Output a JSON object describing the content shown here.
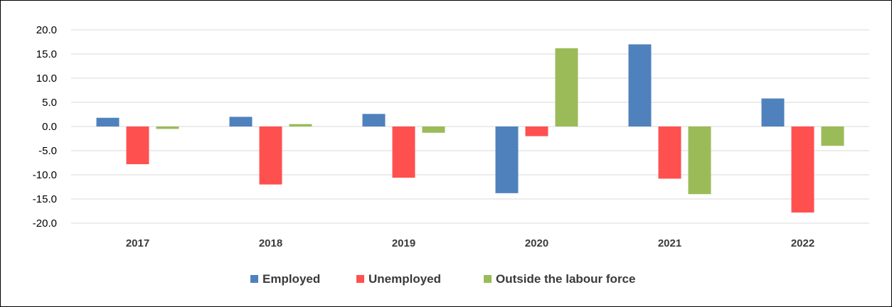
{
  "chart_data": {
    "type": "bar",
    "title": "",
    "xlabel": "",
    "ylabel": "",
    "categories": [
      "2017",
      "2018",
      "2019",
      "2020",
      "2021",
      "2022"
    ],
    "series": [
      {
        "name": "Employed",
        "color": "#4f81bd",
        "values": [
          1.8,
          2.0,
          2.6,
          -13.8,
          17.0,
          5.8
        ]
      },
      {
        "name": "Unemployed",
        "color": "#ff5050",
        "values": [
          -7.8,
          -12.0,
          -10.6,
          -2.0,
          -10.8,
          -17.8
        ]
      },
      {
        "name": "Outside the labour force",
        "color": "#9bbb59",
        "values": [
          -0.5,
          0.5,
          -1.3,
          16.2,
          -14.0,
          -4.0
        ]
      }
    ],
    "ylim": [
      -20,
      20
    ],
    "yticks": [
      "20.0",
      "15.0",
      "10.0",
      "5.0",
      "0.0",
      "-5.0",
      "-10.0",
      "-15.0",
      "-20.0"
    ],
    "grid": true,
    "legend_position": "bottom"
  }
}
